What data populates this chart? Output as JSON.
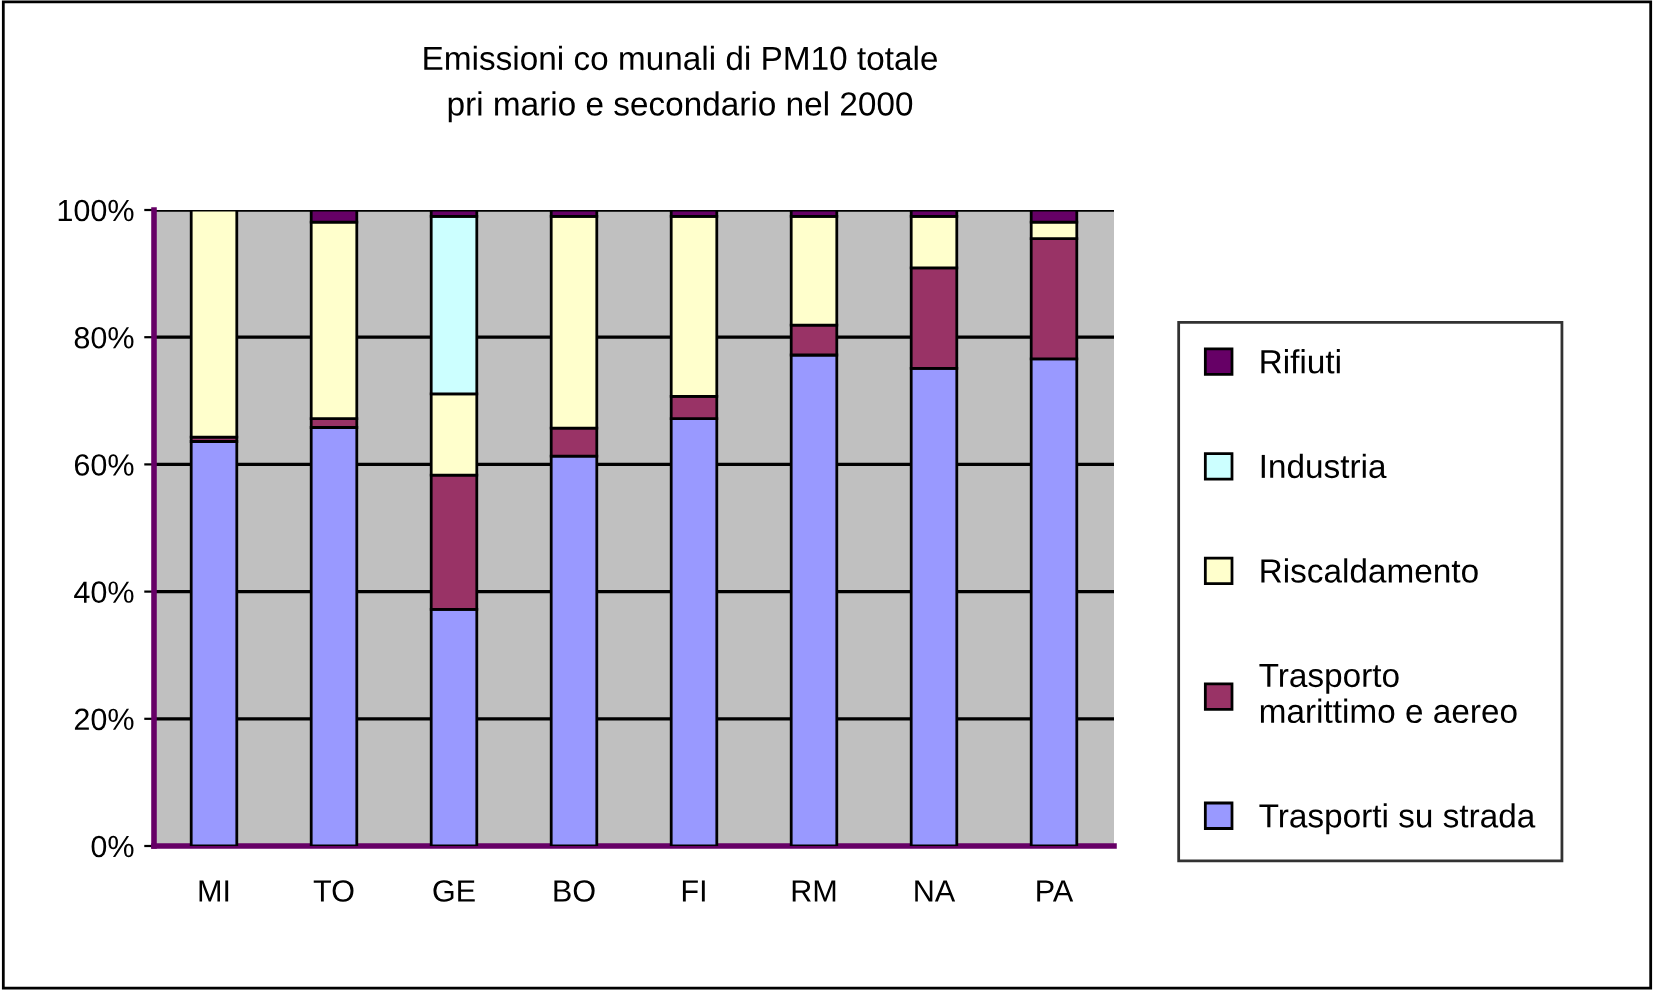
{
  "chart_data": {
    "type": "bar",
    "stacked": true,
    "title": "Emissioni co munali di PM10 totale\npri mario e secondario nel 2000",
    "categories": [
      "MI",
      "TO",
      "GE",
      "BO",
      "FI",
      "RM",
      "NA",
      "PA"
    ],
    "series": [
      {
        "name": "Trasporti su strada",
        "color": "#9999ff",
        "values": [
          63.6,
          65.8,
          37.2,
          61.3,
          67.2,
          77.2,
          75.1,
          76.6
        ]
      },
      {
        "name": "Trasporto\nmarittimo e aereo",
        "color": "#993366",
        "values": [
          0.7,
          1.4,
          21.1,
          4.4,
          3.5,
          4.7,
          15.8,
          18.9
        ]
      },
      {
        "name": "Riscaldamento",
        "color": "#ffffcc",
        "values": [
          35.7,
          30.9,
          12.8,
          33.3,
          28.3,
          17.1,
          8.1,
          2.6
        ]
      },
      {
        "name": "Industria",
        "color": "#ccffff",
        "values": [
          null,
          null,
          27.9,
          null,
          null,
          null,
          null,
          null
        ]
      },
      {
        "name": "Rifiuti",
        "color": "#660066",
        "values": [
          null,
          1.9,
          1.0,
          1.0,
          1.0,
          1.0,
          1.0,
          1.9
        ]
      }
    ],
    "ylim": [
      0,
      100
    ],
    "yticks": [
      {
        "value": 0,
        "label": "0%"
      },
      {
        "value": 20,
        "label": "20%"
      },
      {
        "value": 40,
        "label": "40%"
      },
      {
        "value": 60,
        "label": "60%"
      },
      {
        "value": 80,
        "label": "80%"
      },
      {
        "value": 100,
        "label": "100%"
      }
    ],
    "grid": "y",
    "legend": "right"
  }
}
